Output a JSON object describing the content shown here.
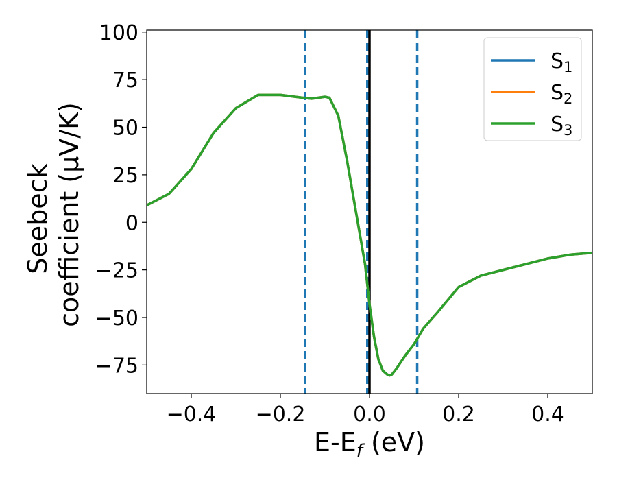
{
  "chart_data": {
    "type": "line",
    "xlabel": "E-E",
    "xlabel_sub": "f",
    "xlabel_unit": " (eV)",
    "ylabel_line1": "Seebeck",
    "ylabel_line2": "coefficient  (μV/K)",
    "xlim": [
      -0.5,
      0.5
    ],
    "ylim": [
      -90,
      101
    ],
    "xticks": [
      -0.4,
      -0.2,
      0.0,
      0.2,
      0.4
    ],
    "xtick_labels": [
      "−0.4",
      "−0.2",
      "0.0",
      "0.2",
      "0.4"
    ],
    "yticks": [
      100,
      75,
      50,
      25,
      0,
      -25,
      -50,
      -75
    ],
    "ytick_labels": [
      "100",
      "75",
      "50",
      "25",
      "0",
      "−25",
      "−50",
      "−75"
    ],
    "legend_position": "top-right",
    "grid": false,
    "vlines": [
      {
        "x": -0.145,
        "style": "dashed",
        "color": "#1f77b4"
      },
      {
        "x": -0.005,
        "style": "dashed",
        "color": "#1f77b4"
      },
      {
        "x": 0.0,
        "style": "solid",
        "color": "#000000"
      },
      {
        "x": 0.107,
        "style": "dashed",
        "color": "#1f77b4"
      }
    ],
    "series": [
      {
        "name": "S",
        "name_sub": "1",
        "color": "#1f77b4",
        "x": [
          -0.5,
          -0.45,
          -0.4,
          -0.35,
          -0.3,
          -0.25,
          -0.2,
          -0.15,
          -0.13,
          -0.1,
          -0.09,
          -0.07,
          -0.05,
          -0.03,
          -0.01,
          0.0,
          0.01,
          0.02,
          0.03,
          0.04,
          0.045,
          0.05,
          0.06,
          0.08,
          0.1,
          0.12,
          0.15,
          0.2,
          0.25,
          0.3,
          0.35,
          0.4,
          0.45,
          0.5
        ],
        "y": [
          9,
          15,
          28,
          47,
          60,
          67,
          67,
          65.5,
          65,
          66,
          65.5,
          56,
          32,
          5,
          -22,
          -43,
          -60,
          -72,
          -78,
          -80,
          -80.5,
          -80,
          -77,
          -70,
          -64,
          -56,
          -48,
          -34,
          -28,
          -25,
          -22,
          -19,
          -17,
          -16
        ]
      },
      {
        "name": "S",
        "name_sub": "2",
        "color": "#ff7f0e",
        "x": [
          -0.5,
          -0.45,
          -0.4,
          -0.35,
          -0.3,
          -0.25,
          -0.2,
          -0.15,
          -0.13,
          -0.1,
          -0.09,
          -0.07,
          -0.05,
          -0.03,
          -0.01,
          0.0,
          0.01,
          0.02,
          0.03,
          0.04,
          0.045,
          0.05,
          0.06,
          0.08,
          0.1,
          0.12,
          0.15,
          0.2,
          0.25,
          0.3,
          0.35,
          0.4,
          0.45,
          0.5
        ],
        "y": [
          9,
          15,
          28,
          47,
          60,
          67,
          67,
          65.5,
          65,
          66,
          65.5,
          56,
          32,
          5,
          -22,
          -43,
          -60,
          -72,
          -78,
          -80,
          -80.5,
          -80,
          -77,
          -70,
          -64,
          -56,
          -48,
          -34,
          -28,
          -25,
          -22,
          -19,
          -17,
          -16
        ]
      },
      {
        "name": "S",
        "name_sub": "3",
        "color": "#2ca02c",
        "x": [
          -0.5,
          -0.45,
          -0.4,
          -0.35,
          -0.3,
          -0.25,
          -0.2,
          -0.15,
          -0.13,
          -0.1,
          -0.09,
          -0.07,
          -0.05,
          -0.03,
          -0.01,
          0.0,
          0.01,
          0.02,
          0.03,
          0.04,
          0.045,
          0.05,
          0.06,
          0.08,
          0.1,
          0.12,
          0.15,
          0.2,
          0.25,
          0.3,
          0.35,
          0.4,
          0.45,
          0.5
        ],
        "y": [
          9,
          15,
          28,
          47,
          60,
          67,
          67,
          65.5,
          65,
          66,
          65.5,
          56,
          32,
          5,
          -22,
          -43,
          -60,
          -72,
          -78,
          -80,
          -80.5,
          -80,
          -77,
          -70,
          -64,
          -56,
          -48,
          -34,
          -28,
          -25,
          -22,
          -19,
          -17,
          -16
        ]
      }
    ]
  }
}
